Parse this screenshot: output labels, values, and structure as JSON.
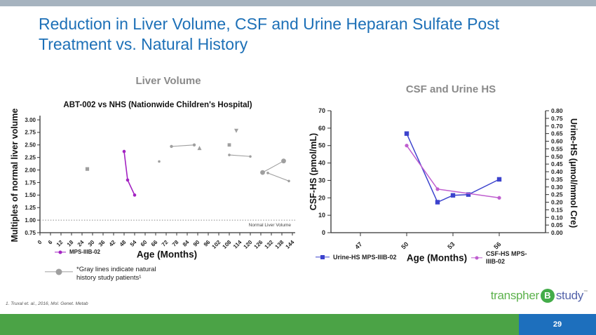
{
  "slide": {
    "title": "Reduction in Liver Volume, CSF and Urine Heparan Sulfate Post Treatment vs. Natural History",
    "footnote": "1. Truxal et. al., 2016, Mol. Genet. Metab",
    "page_number": "29",
    "logo": {
      "part1": "transpher",
      "badge": "B",
      "part2": "study",
      "mark": "™"
    }
  },
  "colors": {
    "title_blue": "#1d70b7",
    "top_bar_gray": "#a6b3bf",
    "bottom_bar_green": "#4ba346",
    "page_box_blue": "#1d6fbd",
    "axis": "#333333",
    "natural_history_gray": "#9f9f9f",
    "treated_purple": "#a323c2",
    "urine_blue": "#3c43cd",
    "csf_purple": "#bf5ecf"
  },
  "chart_data": [
    {
      "type": "scatter",
      "title": "Liver Volume",
      "subtitle": "ABT-002 vs NHS (Nationwide Children's Hospital)",
      "xlabel": "Age (Months)",
      "ylabel": "Multiples of normal liver volume",
      "xlim": [
        0,
        147
      ],
      "ylim": [
        0.75,
        3.05
      ],
      "xticks": [
        0,
        6,
        12,
        18,
        24,
        30,
        36,
        42,
        48,
        54,
        60,
        66,
        72,
        78,
        84,
        90,
        96,
        102,
        108,
        114,
        120,
        126,
        132,
        138,
        144
      ],
      "ytick_labels": [
        "0.75",
        "1.00",
        "1.25",
        "1.50",
        "1.75",
        "2.00",
        "2.25",
        "2.50",
        "2.75",
        "3.00"
      ],
      "grid": false,
      "reference_line": {
        "y": 1.0,
        "label": "Normal Liver Volume",
        "style": "dotted"
      },
      "treated_series": {
        "name": "MPS-IIIB-02",
        "color": "#a323c2",
        "marker": "circle",
        "points": [
          [
            48,
            2.37
          ],
          [
            50,
            1.8
          ],
          [
            54,
            1.5
          ]
        ]
      },
      "natural_history": {
        "color": "#9f9f9f",
        "note": "*Gray lines indicate natural history study patients¹",
        "segments": [
          {
            "marker": "square",
            "msize": 2.6,
            "points": [
              [
                27,
                2.02
              ]
            ]
          },
          {
            "marker": "circle",
            "msize": 1.8,
            "points": [
              [
                68,
                2.17
              ]
            ]
          },
          {
            "marker": "circle",
            "msize": 2.2,
            "points": [
              [
                75,
                2.47
              ],
              [
                88,
                2.5
              ]
            ]
          },
          {
            "marker": "triangle-up",
            "msize": 3.0,
            "points": [
              [
                91,
                2.44
              ]
            ]
          },
          {
            "marker": "square",
            "msize": 2.4,
            "points": [
              [
                108,
                2.5
              ]
            ]
          },
          {
            "marker": "triangle-down",
            "msize": 3.0,
            "points": [
              [
                112,
                2.78
              ]
            ]
          },
          {
            "marker": "circle",
            "msize": 1.8,
            "points": [
              [
                108,
                2.3
              ],
              [
                120,
                2.27
              ]
            ]
          },
          {
            "marker": "circle",
            "msize": 3.4,
            "points": [
              [
                127,
                1.95
              ],
              [
                139,
                2.18
              ]
            ]
          },
          {
            "marker": "circle",
            "msize": 1.8,
            "points": [
              [
                130,
                1.94
              ],
              [
                142,
                1.78
              ]
            ]
          }
        ]
      }
    },
    {
      "type": "line",
      "title": "CSF and Urine HS",
      "xlabel": "Age (Months)",
      "ylabel_left": "CSF-HS (pmol/mL)",
      "ylabel_right": "Urine-HS (μmol/mmol Cre)",
      "xticks": [
        47,
        50,
        53,
        56
      ],
      "ylim_left": [
        0,
        70
      ],
      "ytick_labels_left": [
        "0",
        "10",
        "20",
        "30",
        "40",
        "50",
        "60",
        "70"
      ],
      "ylim_right": [
        0,
        0.8
      ],
      "ytick_labels_right": [
        "0.00",
        "0.05",
        "0.10",
        "0.15",
        "0.20",
        "0.25",
        "0.30",
        "0.35",
        "0.40",
        "0.45",
        "0.50",
        "0.55",
        "0.60",
        "0.65",
        "0.70",
        "0.75",
        "0.80"
      ],
      "grid": false,
      "legend_position": "bottom",
      "series": [
        {
          "name": "Urine-HS MPS-IIIB-02",
          "axis": "right",
          "color": "#3c43cd",
          "marker": "square",
          "x": [
            50,
            52,
            53,
            54,
            56
          ],
          "y": [
            0.65,
            0.2,
            0.245,
            0.25,
            0.35
          ]
        },
        {
          "name": "CSF-HS MPS-IIIB-02",
          "axis": "left",
          "color": "#bf5ecf",
          "marker": "circle",
          "x": [
            50,
            52,
            56
          ],
          "y": [
            50,
            25,
            20
          ]
        }
      ]
    }
  ]
}
